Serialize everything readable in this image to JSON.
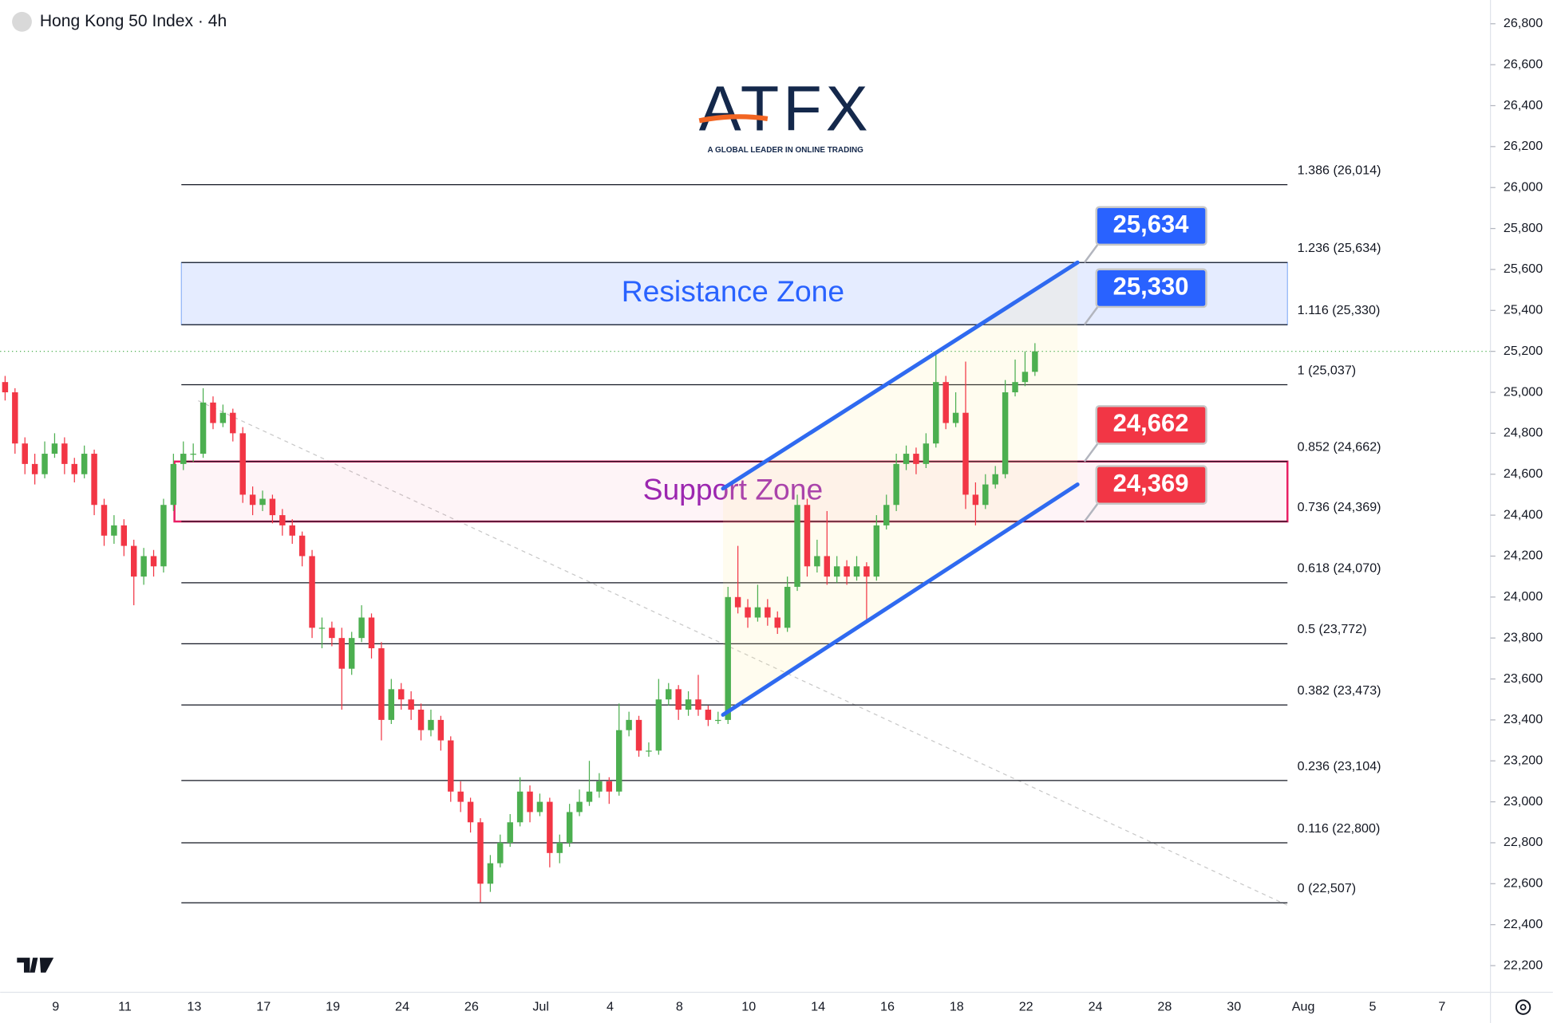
{
  "chart_data": {
    "type": "candlestick",
    "title": "Hong Kong 50 Index · 4h",
    "logo": {
      "name": "ATFX",
      "tagline": "A GLOBAL LEADER IN ONLINE TRADING"
    },
    "categories": [
      "9",
      "11",
      "13",
      "17",
      "19",
      "24",
      "26",
      "Jul",
      "4",
      "8",
      "10",
      "14",
      "16",
      "18",
      "22",
      "24",
      "28",
      "30",
      "Aug",
      "5",
      "7"
    ],
    "ylim": [
      22100,
      26900
    ],
    "yticks": [
      {
        "value": 22200,
        "label": "22,200"
      },
      {
        "value": 22400,
        "label": "22,400"
      },
      {
        "value": 22600,
        "label": "22,600"
      },
      {
        "value": 22800,
        "label": "22,800"
      },
      {
        "value": 23000,
        "label": "23,000"
      },
      {
        "value": 23200,
        "label": "23,200"
      },
      {
        "value": 23400,
        "label": "23,400"
      },
      {
        "value": 23600,
        "label": "23,600"
      },
      {
        "value": 23800,
        "label": "23,800"
      },
      {
        "value": 24000,
        "label": "24,000"
      },
      {
        "value": 24200,
        "label": "24,200"
      },
      {
        "value": 24400,
        "label": "24,400"
      },
      {
        "value": 24600,
        "label": "24,600"
      },
      {
        "value": 24800,
        "label": "24,800"
      },
      {
        "value": 25000,
        "label": "25,000"
      },
      {
        "value": 25200,
        "label": "25,200"
      },
      {
        "value": 25400,
        "label": "25,400"
      },
      {
        "value": 25600,
        "label": "25,600"
      },
      {
        "value": 25800,
        "label": "25,800"
      },
      {
        "value": 26000,
        "label": "26,000"
      },
      {
        "value": 26200,
        "label": "26,200"
      },
      {
        "value": 26400,
        "label": "26,400"
      },
      {
        "value": 26600,
        "label": "26,600"
      },
      {
        "value": 26800,
        "label": "26,800"
      }
    ],
    "up_color": "#4caf50",
    "down_color": "#f23645",
    "candles": [
      [
        25050,
        25080,
        24960,
        25000
      ],
      [
        25000,
        25020,
        24700,
        24750
      ],
      [
        24750,
        24780,
        24600,
        24650
      ],
      [
        24650,
        24700,
        24550,
        24600
      ],
      [
        24600,
        24760,
        24580,
        24700
      ],
      [
        24700,
        24800,
        24680,
        24750
      ],
      [
        24750,
        24780,
        24600,
        24650
      ],
      [
        24650,
        24680,
        24560,
        24600
      ],
      [
        24600,
        24740,
        24580,
        24700
      ],
      [
        24700,
        24720,
        24400,
        24450
      ],
      [
        24450,
        24480,
        24250,
        24300
      ],
      [
        24300,
        24400,
        24260,
        24350
      ],
      [
        24350,
        24380,
        24200,
        24250
      ],
      [
        24250,
        24280,
        23960,
        24100
      ],
      [
        24100,
        24240,
        24060,
        24200
      ],
      [
        24200,
        24230,
        24100,
        24150
      ],
      [
        24150,
        24480,
        24120,
        24450
      ],
      [
        24450,
        24700,
        24420,
        24650
      ],
      [
        24650,
        24760,
        24620,
        24700
      ],
      [
        24700,
        24750,
        24660,
        24700
      ],
      [
        24700,
        25020,
        24680,
        24950
      ],
      [
        24950,
        24980,
        24820,
        24850
      ],
      [
        24850,
        24940,
        24830,
        24900
      ],
      [
        24900,
        24920,
        24760,
        24800
      ],
      [
        24800,
        24830,
        24460,
        24500
      ],
      [
        24500,
        24540,
        24400,
        24450
      ],
      [
        24450,
        24520,
        24420,
        24480
      ],
      [
        24480,
        24500,
        24360,
        24400
      ],
      [
        24400,
        24430,
        24300,
        24350
      ],
      [
        24350,
        24380,
        24260,
        24300
      ],
      [
        24300,
        24320,
        24150,
        24200
      ],
      [
        24200,
        24230,
        23800,
        23850
      ],
      [
        23850,
        23900,
        23750,
        23850
      ],
      [
        23850,
        23880,
        23760,
        23800
      ],
      [
        23800,
        23850,
        23450,
        23650
      ],
      [
        23650,
        23830,
        23620,
        23800
      ],
      [
        23800,
        23960,
        23780,
        23900
      ],
      [
        23900,
        23920,
        23700,
        23750
      ],
      [
        23750,
        23780,
        23300,
        23400
      ],
      [
        23400,
        23600,
        23380,
        23550
      ],
      [
        23550,
        23580,
        23450,
        23500
      ],
      [
        23500,
        23540,
        23400,
        23450
      ],
      [
        23450,
        23480,
        23300,
        23350
      ],
      [
        23350,
        23450,
        23320,
        23400
      ],
      [
        23400,
        23420,
        23250,
        23300
      ],
      [
        23300,
        23320,
        23000,
        23050
      ],
      [
        23050,
        23100,
        22950,
        23000
      ],
      [
        23000,
        23020,
        22850,
        22900
      ],
      [
        22900,
        22920,
        22510,
        22600
      ],
      [
        22600,
        22740,
        22560,
        22700
      ],
      [
        22700,
        22840,
        22680,
        22800
      ],
      [
        22800,
        22940,
        22780,
        22900
      ],
      [
        22900,
        23120,
        22880,
        23050
      ],
      [
        23050,
        23080,
        22900,
        22950
      ],
      [
        22950,
        23040,
        22930,
        23000
      ],
      [
        23000,
        23020,
        22680,
        22750
      ],
      [
        22750,
        22840,
        22700,
        22800
      ],
      [
        22800,
        22990,
        22780,
        22950
      ],
      [
        22950,
        23060,
        22930,
        23000
      ],
      [
        23000,
        23200,
        22980,
        23050
      ],
      [
        23050,
        23140,
        23020,
        23100
      ],
      [
        23100,
        23120,
        22990,
        23050
      ],
      [
        23050,
        23480,
        23030,
        23350
      ],
      [
        23350,
        23440,
        23320,
        23400
      ],
      [
        23400,
        23420,
        23220,
        23250
      ],
      [
        23250,
        23290,
        23220,
        23250
      ],
      [
        23250,
        23600,
        23230,
        23500
      ],
      [
        23500,
        23580,
        23470,
        23550
      ],
      [
        23550,
        23570,
        23400,
        23450
      ],
      [
        23450,
        23540,
        23420,
        23500
      ],
      [
        23500,
        23620,
        23420,
        23450
      ],
      [
        23450,
        23470,
        23370,
        23400
      ],
      [
        23400,
        23440,
        23380,
        23400
      ],
      [
        23400,
        24050,
        23380,
        24000
      ],
      [
        24000,
        24250,
        23920,
        23950
      ],
      [
        23950,
        23990,
        23850,
        23900
      ],
      [
        23900,
        24060,
        23880,
        23950
      ],
      [
        23950,
        23990,
        23860,
        23900
      ],
      [
        23900,
        23930,
        23820,
        23850
      ],
      [
        23850,
        24100,
        23830,
        24050
      ],
      [
        24050,
        24500,
        24030,
        24450
      ],
      [
        24450,
        24480,
        24100,
        24150
      ],
      [
        24150,
        24280,
        24120,
        24200
      ],
      [
        24200,
        24420,
        24060,
        24100
      ],
      [
        24100,
        24200,
        24070,
        24150
      ],
      [
        24150,
        24180,
        24060,
        24100
      ],
      [
        24100,
        24200,
        24080,
        24150
      ],
      [
        24150,
        24170,
        23880,
        24100
      ],
      [
        24100,
        24400,
        24080,
        24350
      ],
      [
        24350,
        24500,
        24330,
        24450
      ],
      [
        24450,
        24700,
        24420,
        24650
      ],
      [
        24650,
        24740,
        24620,
        24700
      ],
      [
        24700,
        24730,
        24600,
        24650
      ],
      [
        24650,
        24800,
        24630,
        24750
      ],
      [
        24750,
        25200,
        24730,
        25050
      ],
      [
        25050,
        25080,
        24820,
        24850
      ],
      [
        24850,
        25000,
        24830,
        24900
      ],
      [
        24900,
        25150,
        24430,
        24500
      ],
      [
        24500,
        24560,
        24350,
        24450
      ],
      [
        24450,
        24600,
        24430,
        24550
      ],
      [
        24550,
        24640,
        24530,
        24600
      ],
      [
        24600,
        25060,
        24580,
        25000
      ],
      [
        25000,
        25160,
        24980,
        25050
      ],
      [
        25050,
        25200,
        25030,
        25100
      ],
      [
        25100,
        25240,
        25080,
        25200
      ]
    ],
    "fib_levels": [
      {
        "value": 26014,
        "label": "1.386 (26,014)"
      },
      {
        "value": 25634,
        "label": "1.236 (25,634)"
      },
      {
        "value": 25330,
        "label": "1.116 (25,330)"
      },
      {
        "value": 25037,
        "label": "1 (25,037)"
      },
      {
        "value": 24662,
        "label": "0.852 (24,662)"
      },
      {
        "value": 24369,
        "label": "0.736 (24,369)"
      },
      {
        "value": 24070,
        "label": "0.618 (24,070)"
      },
      {
        "value": 23772,
        "label": "0.5 (23,772)"
      },
      {
        "value": 23473,
        "label": "0.382 (23,473)"
      },
      {
        "value": 23104,
        "label": "0.236 (23,104)"
      },
      {
        "value": 22800,
        "label": "0.116 (22,800)"
      },
      {
        "value": 22507,
        "label": "0 (22,507)"
      }
    ],
    "zones": [
      {
        "name": "Resistance Zone",
        "low": 25330,
        "high": 25634,
        "color": "#2962ff"
      },
      {
        "name": "Support Zone",
        "low": 24369,
        "high": 24662,
        "color": "#9c27b0"
      }
    ],
    "channel": {
      "upper": [
        24530,
        25634
      ],
      "lower": [
        23425,
        24550
      ],
      "color": "#2f6af0"
    },
    "callouts": [
      {
        "value": 25634,
        "label": "25,634",
        "color": "#2962ff"
      },
      {
        "value": 25330,
        "label": "25,330",
        "color": "#2962ff"
      },
      {
        "value": 24662,
        "label": "24,662",
        "color": "#f23645"
      },
      {
        "value": 24369,
        "label": "24,369",
        "color": "#f23645"
      }
    ]
  }
}
